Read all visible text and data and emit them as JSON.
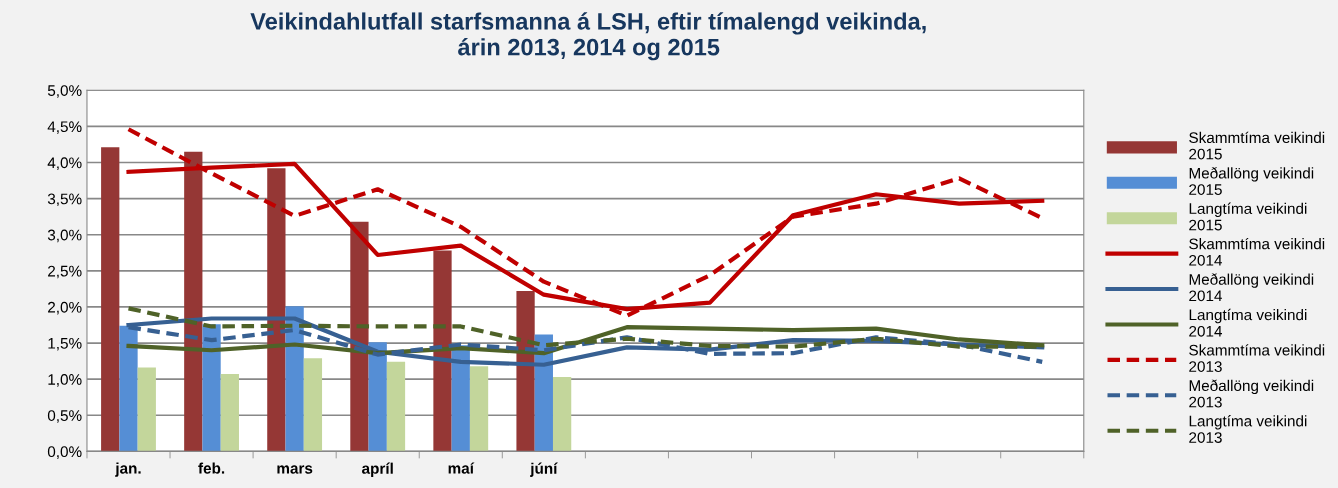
{
  "chart_data": {
    "type": "bar",
    "title": "Veikindahlutfall starfsmanna á LSH, eftir tímalengd veikinda,\nárin 2013, 2014 og 2015",
    "categories": [
      "jan.",
      "feb.",
      "mars",
      "apríl",
      "maí",
      "júní",
      null,
      null,
      null,
      null,
      null,
      null
    ],
    "series": [
      {
        "name": "Skammtíma veikindi\n2015",
        "color": "#953735",
        "values": [
          4.21,
          4.15,
          3.92,
          3.18,
          2.78,
          2.22,
          null,
          null,
          null,
          null,
          null,
          null
        ]
      },
      {
        "name": "Meðallöng veikindi\n2015",
        "color": "#558ed5",
        "values": [
          1.74,
          1.76,
          2.01,
          1.51,
          1.47,
          1.62,
          null,
          null,
          null,
          null,
          null,
          null
        ]
      },
      {
        "name": "Langtíma veikindi\n2015",
        "color": "#c3d69b",
        "values": [
          1.16,
          1.07,
          1.29,
          1.24,
          1.18,
          1.03,
          null,
          null,
          null,
          null,
          null,
          null
        ]
      },
      {
        "name": "Skammtíma veikindi\n2014",
        "type": "line",
        "line_style": "solid",
        "color": "#c00000",
        "values": [
          3.87,
          3.93,
          3.98,
          2.72,
          2.85,
          2.17,
          1.97,
          2.06,
          3.27,
          3.56,
          3.43,
          3.47
        ]
      },
      {
        "name": "Meðallöng veikindi\n2014",
        "type": "line",
        "line_style": "solid",
        "color": "#376092",
        "values": [
          1.75,
          1.84,
          1.84,
          1.38,
          1.24,
          1.2,
          1.44,
          1.41,
          1.54,
          1.53,
          1.48,
          1.44
        ]
      },
      {
        "name": "Langtíma veikindi\n2014",
        "type": "line",
        "line_style": "solid",
        "color": "#4f6228",
        "values": [
          1.46,
          1.4,
          1.48,
          1.36,
          1.43,
          1.36,
          1.72,
          1.7,
          1.68,
          1.7,
          1.55,
          1.47
        ]
      },
      {
        "name": "Skammtíma veikindi\n2013",
        "type": "line",
        "line_style": "dashed",
        "color": "#c00000",
        "values": [
          4.46,
          3.85,
          3.26,
          3.63,
          3.11,
          2.35,
          1.88,
          2.44,
          3.25,
          3.43,
          3.78,
          3.23
        ]
      },
      {
        "name": "Meðallöng veikindi\n2013",
        "type": "line",
        "line_style": "dashed",
        "color": "#376092",
        "values": [
          1.72,
          1.54,
          1.68,
          1.34,
          1.48,
          1.4,
          1.58,
          1.35,
          1.36,
          1.58,
          1.48,
          1.24
        ]
      },
      {
        "name": "Langtíma veikindi\n2013",
        "type": "line",
        "line_style": "dashed",
        "color": "#4f6228",
        "values": [
          1.98,
          1.73,
          1.74,
          1.73,
          1.73,
          1.47,
          1.56,
          1.46,
          1.45,
          1.56,
          1.45,
          1.45
        ]
      }
    ],
    "ylim": [
      0,
      5
    ],
    "yticks": [
      {
        "value": 0,
        "label": "0,0%"
      },
      {
        "value": 0.5,
        "label": "0,5%"
      },
      {
        "value": 1,
        "label": "1,0%"
      },
      {
        "value": 1.5,
        "label": "1,5%"
      },
      {
        "value": 2,
        "label": "2,0%"
      },
      {
        "value": 2.5,
        "label": "2,5%"
      },
      {
        "value": 3,
        "label": "3,0%"
      },
      {
        "value": 3.5,
        "label": "3,5%"
      },
      {
        "value": 4,
        "label": "4,0%"
      },
      {
        "value": 4.5,
        "label": "4,5%"
      },
      {
        "value": 5,
        "label": "5,0%"
      }
    ],
    "grid": "y",
    "legend": "right",
    "marker": "none"
  }
}
